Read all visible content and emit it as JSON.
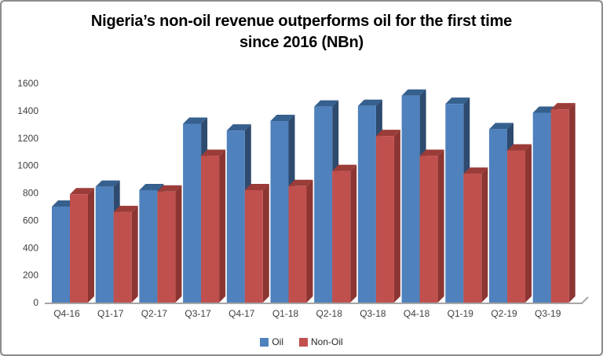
{
  "frame": {
    "background": "#ffffff",
    "border_color": "#8c8c8c"
  },
  "title": {
    "line1": "Nigeria’s non-oil revenue outperforms oil for the first time",
    "line2": "since 2016 (NBn)"
  },
  "chart_data": {
    "type": "bar",
    "style": "3d-clustered-column",
    "title": "Nigeria’s non-oil revenue outperforms oil for the first time since 2016 (NBn)",
    "categories": [
      "Q4-16",
      "Q1-17",
      "Q2-17",
      "Q3-17",
      "Q4-17",
      "Q1-18",
      "Q2-18",
      "Q3-18",
      "Q4-18",
      "Q1-19",
      "Q2-19",
      "Q3-19"
    ],
    "series": [
      {
        "name": "Oil",
        "values": [
          700,
          845,
          820,
          1305,
          1255,
          1325,
          1430,
          1435,
          1510,
          1450,
          1265,
          1385
        ],
        "colors": {
          "front": "#4F81BD",
          "top": "#36608E",
          "side": "#2E4A6F"
        }
      },
      {
        "name": "Non-Oil",
        "values": [
          790,
          660,
          810,
          1070,
          820,
          850,
          960,
          1215,
          1070,
          940,
          1110,
          1410
        ],
        "colors": {
          "front": "#C0504D",
          "top": "#9B3C39",
          "side": "#8C3633"
        }
      }
    ],
    "xlabel": "",
    "ylabel": "",
    "ylim": [
      0,
      1600
    ],
    "ytick_step": 200,
    "yticks": [
      "0",
      "200",
      "400",
      "600",
      "800",
      "1000",
      "1200",
      "1400",
      "1600"
    ],
    "grid": false,
    "legend_position": "bottom",
    "axis_color": "#A6A6A6",
    "tick_label_color": "#3F3F3F"
  }
}
